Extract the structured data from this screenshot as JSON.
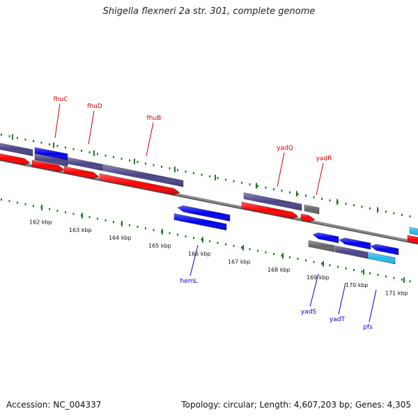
{
  "title": "Shigella flexneri 2a str. 301, complete genome",
  "footer": {
    "accession": "Accession: NC_004337",
    "topology": "Topology: circular; Length: 4,607,203 bp; Genes: 4,305"
  },
  "colors": {
    "forward_gene": "#ff0000",
    "reverse_gene": "#0000ee",
    "cds_purple": "#4a4488",
    "cds_grey": "#666666",
    "cyan": "#22bbee",
    "backbone": "#8a8a8a",
    "ticks": "#1a7a1a",
    "forward_label": "#cc0000",
    "reverse_label": "#0000cc"
  },
  "ticks": [
    {
      "label": "162 kbp"
    },
    {
      "label": "163 kbp"
    },
    {
      "label": "164 kbp"
    },
    {
      "label": "165 kbp"
    },
    {
      "label": "166 kbp"
    },
    {
      "label": "167 kbp"
    },
    {
      "label": "168 kbp"
    },
    {
      "label": "169 kbp"
    },
    {
      "label": "170 kbp"
    },
    {
      "label": "171 kbp"
    }
  ],
  "forward_labels": [
    "fhuC",
    "fhuD",
    "fhuB",
    "yadQ",
    "yadR"
  ],
  "reverse_labels": [
    "hemL",
    "yadS",
    "yadT",
    "pfs"
  ]
}
